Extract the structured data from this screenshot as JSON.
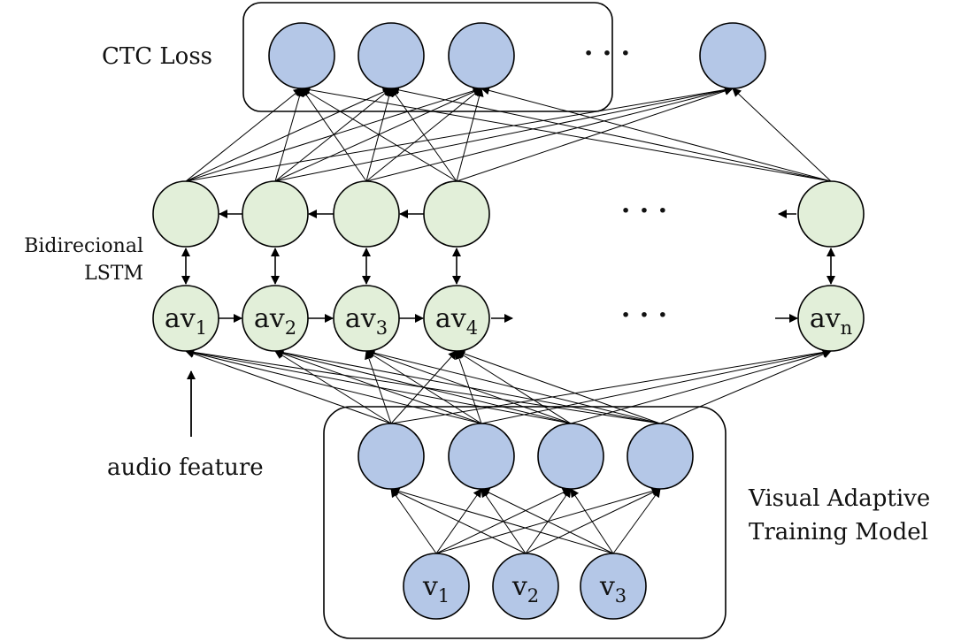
{
  "labels": {
    "ctc_loss": "CTC Loss",
    "bilstm_line1": "Bidirecional",
    "bilstm_line2": "LSTM",
    "audio_feature": "audio feature",
    "visual_line1": "Visual Adaptive",
    "visual_line2": "Training Model",
    "ellipsis": "· · ·"
  },
  "nodes": {
    "av": [
      {
        "base": "av",
        "sub": "1"
      },
      {
        "base": "av",
        "sub": "2"
      },
      {
        "base": "av",
        "sub": "3"
      },
      {
        "base": "av",
        "sub": "4"
      },
      {
        "base": "av",
        "sub": "n"
      }
    ],
    "v": [
      {
        "base": "v",
        "sub": "1"
      },
      {
        "base": "v",
        "sub": "2"
      },
      {
        "base": "v",
        "sub": "3"
      }
    ]
  },
  "colors": {
    "blue_fill": "#b4c7e7",
    "green_fill": "#e2efd9",
    "stroke": "#000000"
  }
}
